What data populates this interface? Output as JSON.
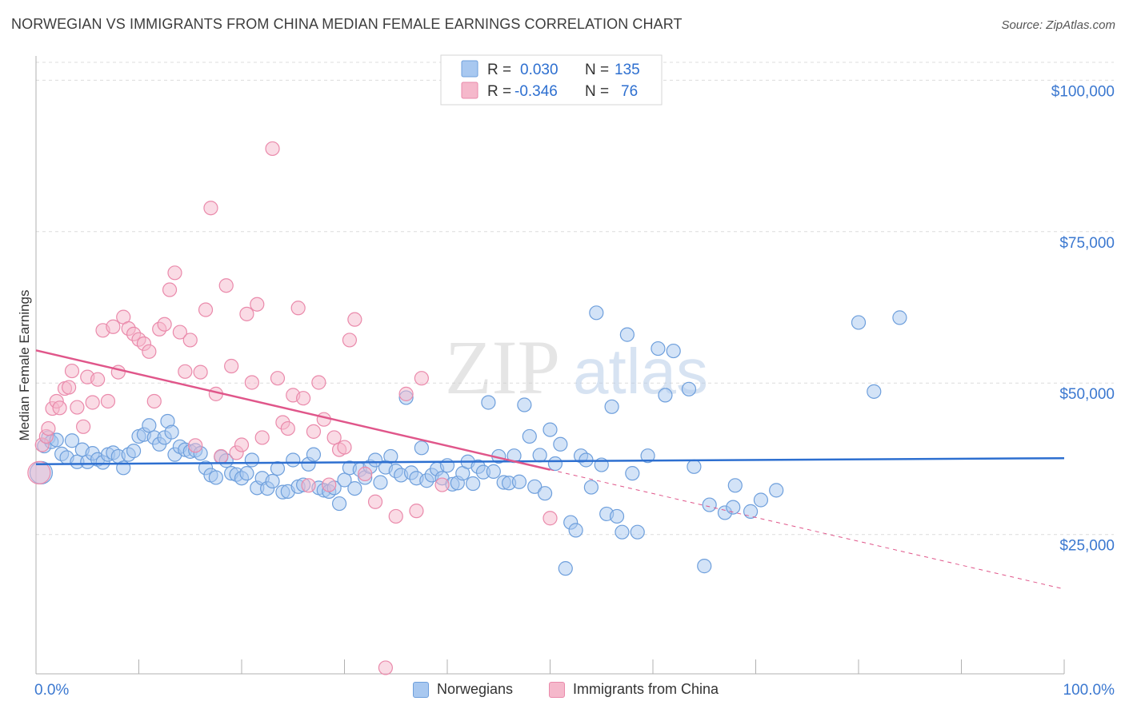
{
  "title": "NORWEGIAN VS IMMIGRANTS FROM CHINA MEDIAN FEMALE EARNINGS CORRELATION CHART",
  "source": "Source: ZipAtlas.com",
  "watermark": {
    "zip": "ZIP",
    "atlas": "atlas"
  },
  "colors": {
    "blue_fill": "#a8c8f0",
    "blue_stroke": "#6e9fdc",
    "blue_line": "#2d6fd0",
    "pink_fill": "#f5b8cb",
    "pink_stroke": "#ea8aab",
    "pink_line": "#e0568a",
    "axis_text": "#3b78d0",
    "grid": "#dcdcdc"
  },
  "legend_top": [
    {
      "r_label": "R =",
      "r_value": "0.030",
      "n_label": "N =",
      "n_value": "135"
    },
    {
      "r_label": "R =",
      "r_value": "-0.346",
      "n_label": "N =",
      "n_value": "76"
    }
  ],
  "legend_bottom": [
    {
      "label": "Norwegians"
    },
    {
      "label": "Immigrants from China"
    }
  ],
  "chart_data": {
    "type": "scatter",
    "title": "NORWEGIAN VS IMMIGRANTS FROM CHINA MEDIAN FEMALE EARNINGS CORRELATION CHART",
    "xlabel": "",
    "ylabel": "Median Female Earnings",
    "xlim": [
      0,
      100
    ],
    "ylim": [
      2000,
      104000
    ],
    "x_tick_labels": [
      "0.0%",
      "100.0%"
    ],
    "y_ticks": [
      25000,
      50000,
      75000,
      100000
    ],
    "y_tick_labels": [
      "$25,000",
      "$50,000",
      "$75,000",
      "$100,000"
    ],
    "grid": true,
    "series": [
      {
        "name": "Norwegians",
        "trend": {
          "x0": 0,
          "y0": 36600,
          "x1": 100,
          "y1": 37600,
          "dashed_from": null
        },
        "points": [
          [
            0.5,
            35200
          ],
          [
            0.8,
            39600
          ],
          [
            1.2,
            41000
          ],
          [
            1.5,
            40300
          ],
          [
            2.0,
            40600
          ],
          [
            2.5,
            38300
          ],
          [
            3.0,
            37700
          ],
          [
            3.5,
            40500
          ],
          [
            4.0,
            37000
          ],
          [
            4.5,
            39000
          ],
          [
            5.0,
            37000
          ],
          [
            5.5,
            38400
          ],
          [
            6.0,
            37400
          ],
          [
            6.5,
            36900
          ],
          [
            7.0,
            38200
          ],
          [
            7.5,
            38500
          ],
          [
            8.0,
            37900
          ],
          [
            8.5,
            36000
          ],
          [
            9.0,
            38200
          ],
          [
            9.5,
            38800
          ],
          [
            10.0,
            41200
          ],
          [
            10.5,
            41500
          ],
          [
            11.0,
            43000
          ],
          [
            11.5,
            41000
          ],
          [
            12.0,
            39900
          ],
          [
            12.5,
            41000
          ],
          [
            12.8,
            43700
          ],
          [
            13.2,
            41900
          ],
          [
            13.5,
            38200
          ],
          [
            14.0,
            39500
          ],
          [
            14.5,
            39000
          ],
          [
            15.0,
            38700
          ],
          [
            15.5,
            38900
          ],
          [
            16.0,
            38400
          ],
          [
            16.5,
            36000
          ],
          [
            17.0,
            34800
          ],
          [
            17.5,
            34400
          ],
          [
            18.0,
            37800
          ],
          [
            18.5,
            37200
          ],
          [
            19.0,
            35100
          ],
          [
            19.5,
            34900
          ],
          [
            20.0,
            34300
          ],
          [
            20.5,
            35100
          ],
          [
            21.0,
            37300
          ],
          [
            21.5,
            32700
          ],
          [
            22.0,
            34300
          ],
          [
            22.5,
            32600
          ],
          [
            23.0,
            33800
          ],
          [
            23.5,
            35900
          ],
          [
            24.0,
            32000
          ],
          [
            24.5,
            32100
          ],
          [
            25.0,
            37300
          ],
          [
            25.5,
            32900
          ],
          [
            26.0,
            33200
          ],
          [
            26.5,
            36600
          ],
          [
            27.0,
            38200
          ],
          [
            27.5,
            32700
          ],
          [
            28.0,
            32300
          ],
          [
            28.5,
            32100
          ],
          [
            29.0,
            32700
          ],
          [
            29.5,
            30100
          ],
          [
            30.0,
            34000
          ],
          [
            30.5,
            36000
          ],
          [
            31.0,
            32600
          ],
          [
            31.5,
            35700
          ],
          [
            32.0,
            34400
          ],
          [
            32.5,
            36200
          ],
          [
            33.0,
            37300
          ],
          [
            33.5,
            33600
          ],
          [
            34.0,
            36100
          ],
          [
            34.5,
            37900
          ],
          [
            35.0,
            35500
          ],
          [
            35.5,
            34800
          ],
          [
            36.0,
            47600
          ],
          [
            36.5,
            35200
          ],
          [
            37.0,
            34300
          ],
          [
            37.5,
            39300
          ],
          [
            38.0,
            33900
          ],
          [
            38.5,
            34800
          ],
          [
            39.0,
            35800
          ],
          [
            39.5,
            34300
          ],
          [
            40.0,
            36400
          ],
          [
            40.5,
            33300
          ],
          [
            41.0,
            33500
          ],
          [
            41.5,
            35100
          ],
          [
            42.0,
            37000
          ],
          [
            42.5,
            33400
          ],
          [
            43.0,
            36200
          ],
          [
            43.5,
            35300
          ],
          [
            44.0,
            46800
          ],
          [
            44.5,
            35400
          ],
          [
            45.0,
            37900
          ],
          [
            45.5,
            33600
          ],
          [
            46.0,
            33500
          ],
          [
            46.5,
            38000
          ],
          [
            47.0,
            33700
          ],
          [
            47.5,
            46400
          ],
          [
            48.0,
            41200
          ],
          [
            48.5,
            32900
          ],
          [
            49.0,
            38100
          ],
          [
            49.5,
            31800
          ],
          [
            50.0,
            42300
          ],
          [
            50.5,
            36700
          ],
          [
            51.0,
            39900
          ],
          [
            51.5,
            19400
          ],
          [
            52.0,
            27000
          ],
          [
            52.5,
            25700
          ],
          [
            53.0,
            38000
          ],
          [
            53.5,
            37300
          ],
          [
            54.0,
            32800
          ],
          [
            54.5,
            61600
          ],
          [
            55.0,
            36500
          ],
          [
            55.5,
            28400
          ],
          [
            56.0,
            46100
          ],
          [
            56.5,
            28000
          ],
          [
            57.0,
            25400
          ],
          [
            57.5,
            58000
          ],
          [
            58.0,
            35100
          ],
          [
            58.5,
            25400
          ],
          [
            59.5,
            38000
          ],
          [
            60.5,
            55700
          ],
          [
            61.2,
            48000
          ],
          [
            62.0,
            55300
          ],
          [
            63.5,
            49000
          ],
          [
            64.0,
            36200
          ],
          [
            65.0,
            19800
          ],
          [
            65.5,
            29900
          ],
          [
            67.0,
            28600
          ],
          [
            67.8,
            29500
          ],
          [
            68.0,
            33100
          ],
          [
            69.5,
            28800
          ],
          [
            70.5,
            30700
          ],
          [
            72.0,
            32300
          ],
          [
            80.0,
            60000
          ],
          [
            81.5,
            48600
          ],
          [
            84.0,
            60800
          ]
        ]
      },
      {
        "name": "Immigrants from China",
        "trend": {
          "x0": 0,
          "y0": 55400,
          "x1": 100,
          "y1": 16000,
          "dashed_from": 50
        },
        "points": [
          [
            0.3,
            35200
          ],
          [
            0.6,
            39800
          ],
          [
            1.0,
            41200
          ],
          [
            1.2,
            42500
          ],
          [
            1.6,
            45800
          ],
          [
            2.0,
            47000
          ],
          [
            2.3,
            45900
          ],
          [
            2.8,
            49100
          ],
          [
            3.2,
            49300
          ],
          [
            3.5,
            52000
          ],
          [
            4.0,
            46000
          ],
          [
            4.6,
            42800
          ],
          [
            5.0,
            51000
          ],
          [
            5.5,
            46800
          ],
          [
            6.0,
            50600
          ],
          [
            6.5,
            58700
          ],
          [
            7.0,
            47000
          ],
          [
            7.5,
            59300
          ],
          [
            8.0,
            51800
          ],
          [
            8.5,
            60900
          ],
          [
            9.0,
            59000
          ],
          [
            9.5,
            58100
          ],
          [
            10.0,
            57200
          ],
          [
            10.5,
            56500
          ],
          [
            11.0,
            55200
          ],
          [
            11.5,
            47000
          ],
          [
            12.0,
            58900
          ],
          [
            12.5,
            59700
          ],
          [
            13.0,
            65400
          ],
          [
            13.5,
            68200
          ],
          [
            14.0,
            58400
          ],
          [
            14.5,
            51900
          ],
          [
            15.0,
            57100
          ],
          [
            15.5,
            39700
          ],
          [
            16.0,
            51800
          ],
          [
            16.5,
            62100
          ],
          [
            17.0,
            78900
          ],
          [
            17.5,
            48200
          ],
          [
            18.0,
            37900
          ],
          [
            18.5,
            66100
          ],
          [
            19.0,
            52800
          ],
          [
            19.5,
            38500
          ],
          [
            20.0,
            39800
          ],
          [
            20.5,
            61400
          ],
          [
            21.0,
            50100
          ],
          [
            21.5,
            63000
          ],
          [
            22.0,
            41000
          ],
          [
            23.0,
            88700
          ],
          [
            23.5,
            50800
          ],
          [
            24.0,
            43500
          ],
          [
            24.5,
            42500
          ],
          [
            25.0,
            48000
          ],
          [
            25.5,
            62400
          ],
          [
            26.0,
            47500
          ],
          [
            26.5,
            33100
          ],
          [
            27.0,
            42000
          ],
          [
            27.5,
            50100
          ],
          [
            28.0,
            44000
          ],
          [
            28.5,
            33200
          ],
          [
            29.0,
            41000
          ],
          [
            29.5,
            39000
          ],
          [
            30.0,
            39400
          ],
          [
            30.5,
            57100
          ],
          [
            31.0,
            60500
          ],
          [
            32.0,
            35000
          ],
          [
            33.0,
            30400
          ],
          [
            34.0,
            3000
          ],
          [
            35.0,
            28000
          ],
          [
            36.0,
            48200
          ],
          [
            37.0,
            28900
          ],
          [
            37.5,
            50800
          ],
          [
            39.5,
            33200
          ],
          [
            50.0,
            27700
          ]
        ]
      }
    ]
  }
}
